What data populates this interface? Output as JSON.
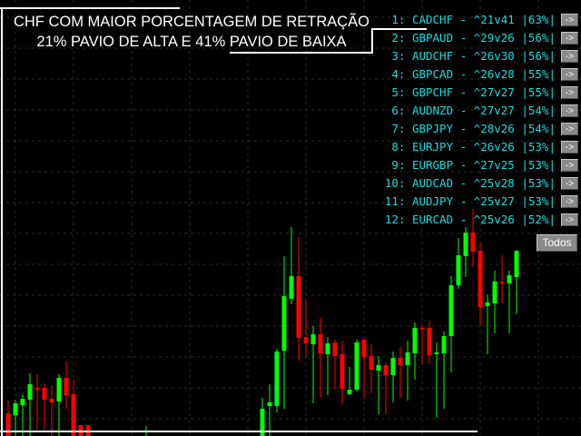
{
  "title": {
    "line1": "CHF COM MAIOR PORCENTAGEM DE RETRAÇÃO",
    "line2": "21% PAVIO DE ALTA E 41% PAVIO DE BAIXA"
  },
  "ranking": [
    {
      "rank": "1:",
      "pair": "CADCHF",
      "ratio": "^21v41",
      "pct": "|63%|",
      "button": "->"
    },
    {
      "rank": "2:",
      "pair": "GBPAUD",
      "ratio": "^29v26",
      "pct": "|56%|",
      "button": "->"
    },
    {
      "rank": "3:",
      "pair": "AUDCHF",
      "ratio": "^26v30",
      "pct": "|56%|",
      "button": "->"
    },
    {
      "rank": "4:",
      "pair": "GBPCAD",
      "ratio": "^26v28",
      "pct": "|55%|",
      "button": "->"
    },
    {
      "rank": "5:",
      "pair": "GBPCHF",
      "ratio": "^27v27",
      "pct": "|55%|",
      "button": "->"
    },
    {
      "rank": "6:",
      "pair": "AUDNZD",
      "ratio": "^27v27",
      "pct": "|54%|",
      "button": "->"
    },
    {
      "rank": "7:",
      "pair": "GBPJPY",
      "ratio": "^28v26",
      "pct": "|54%|",
      "button": "->"
    },
    {
      "rank": "8:",
      "pair": "EURJPY",
      "ratio": "^26v26",
      "pct": "|53%|",
      "button": "->"
    },
    {
      "rank": "9:",
      "pair": "EURGBP",
      "ratio": "^27v25",
      "pct": "|53%|",
      "button": "->"
    },
    {
      "rank": "10:",
      "pair": "AUDCAD",
      "ratio": "^25v28",
      "pct": "|53%|",
      "button": "->"
    },
    {
      "rank": "11:",
      "pair": "AUDJPY",
      "ratio": "^25v27",
      "pct": "|53%|",
      "button": "->"
    },
    {
      "rank": "12:",
      "pair": "EURCAD",
      "ratio": "^25v26",
      "pct": "|52%|",
      "button": "->"
    }
  ],
  "todos_button": "Todos",
  "colors": {
    "bull": "#00ff00",
    "bear": "#ff0000",
    "text": "#18dcdc",
    "background": "#000000",
    "grid": "#2a2a2a"
  },
  "chart_data": {
    "type": "candlestick",
    "grid": true,
    "candles_ohlc": [
      [
        25,
        39,
        0,
        0
      ],
      [
        23,
        40,
        0,
        36
      ],
      [
        34,
        46,
        0,
        41
      ],
      [
        40,
        69,
        0,
        57
      ],
      [
        53,
        68,
        7,
        52
      ],
      [
        53,
        58,
        7,
        40
      ],
      [
        41,
        56,
        0,
        37
      ],
      [
        38,
        68,
        0,
        64
      ],
      [
        64,
        82,
        30,
        45
      ],
      [
        46,
        62,
        0,
        0
      ],
      [
        12,
        12,
        0,
        0
      ],
      [
        12,
        12,
        0,
        0
      ],
      [
        0,
        11,
        0,
        0
      ],
      [
        0,
        42,
        0,
        30
      ],
      [
        33,
        57,
        0,
        37
      ],
      [
        33,
        96,
        26,
        93
      ],
      [
        94,
        198,
        30,
        154
      ],
      [
        151,
        230,
        145,
        176
      ],
      [
        176,
        219,
        83,
        108
      ],
      [
        109,
        151,
        88,
        102
      ],
      [
        101,
        121,
        36,
        112
      ],
      [
        112,
        130,
        43,
        91
      ],
      [
        90,
        109,
        45,
        102
      ],
      [
        103,
        106,
        51,
        88
      ],
      [
        90,
        105,
        35,
        52
      ],
      [
        46,
        76,
        45,
        51
      ],
      [
        51,
        106,
        49,
        103
      ],
      [
        106,
        108,
        41,
        87
      ],
      [
        88,
        101,
        47,
        73
      ],
      [
        72,
        88,
        24,
        78
      ],
      [
        78,
        81,
        24,
        67
      ],
      [
        67,
        93,
        37,
        86
      ],
      [
        86,
        98,
        42,
        78
      ],
      [
        78,
        105,
        39,
        92
      ],
      [
        91,
        125,
        62,
        119
      ],
      [
        119,
        122,
        79,
        118
      ],
      [
        119,
        127,
        80,
        89
      ],
      [
        90,
        103,
        20,
        92
      ],
      [
        91,
        115,
        30,
        110
      ],
      [
        110,
        176,
        70,
        166
      ],
      [
        166,
        218,
        162,
        199
      ],
      [
        198,
        230,
        175,
        224
      ],
      [
        224,
        250,
        186,
        203
      ],
      [
        204,
        214,
        122,
        142
      ],
      [
        143,
        156,
        90,
        147
      ],
      [
        146,
        182,
        113,
        170
      ],
      [
        170,
        199,
        146,
        169
      ],
      [
        168,
        182,
        113,
        177
      ],
      [
        175,
        204,
        134,
        204
      ]
    ]
  }
}
